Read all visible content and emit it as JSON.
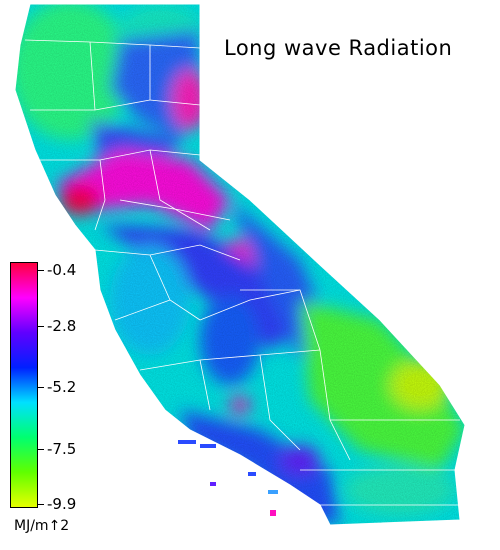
{
  "title": "Long wave Radiation",
  "legend": {
    "units": "MJ/m↑2",
    "ticks": [
      "-0.4",
      "-2.8",
      "-5.2",
      "-7.5",
      "-9.9"
    ],
    "colors": [
      "#ff0040",
      "#ff00ff",
      "#6000ff",
      "#0020ff",
      "#00e0ff",
      "#00ff70",
      "#60ff00",
      "#e6ff00"
    ]
  },
  "map": {
    "region": "California",
    "counties_shown": true
  }
}
